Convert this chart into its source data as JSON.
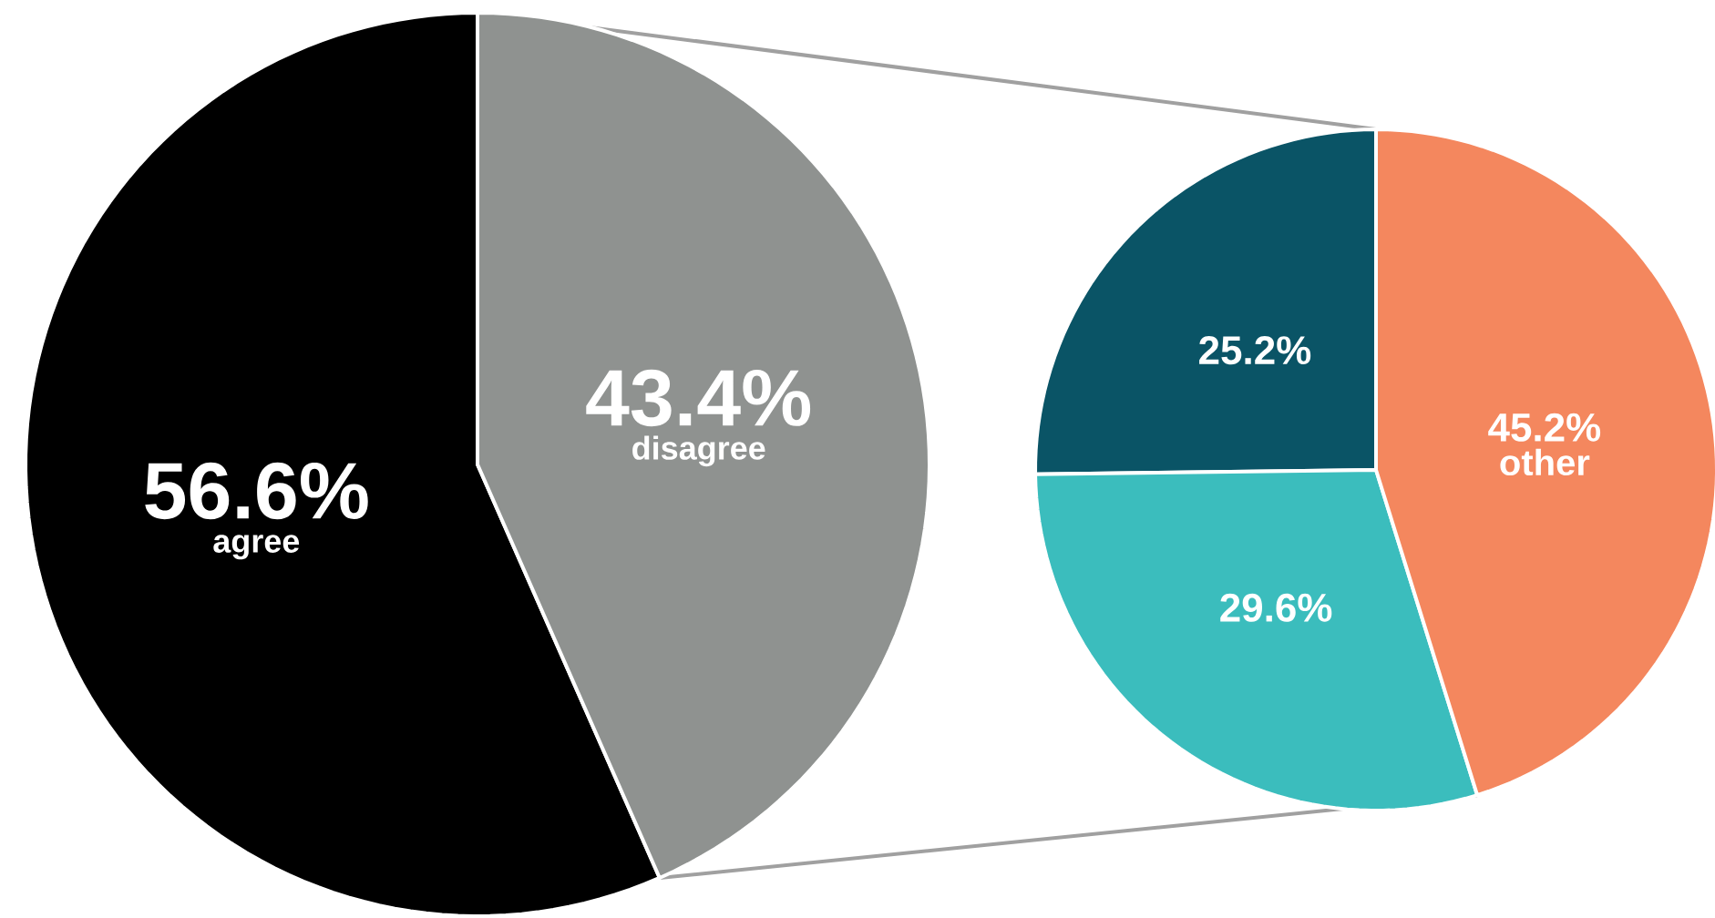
{
  "chart_data": [
    {
      "type": "pie",
      "categories": [
        "agree",
        "disagree"
      ],
      "values": [
        56.6,
        43.4
      ],
      "colors": [
        "#000000",
        "#8f9290"
      ],
      "value_labels": [
        "56.6%",
        "43.4%"
      ]
    },
    {
      "type": "pie",
      "categories": [
        null,
        null,
        "other"
      ],
      "values": [
        25.2,
        29.6,
        45.2
      ],
      "colors": [
        "#0a5466",
        "#3bbdbd",
        "#f4875e"
      ],
      "value_labels": [
        "25.2%",
        "29.6%",
        "45.2%"
      ]
    }
  ]
}
